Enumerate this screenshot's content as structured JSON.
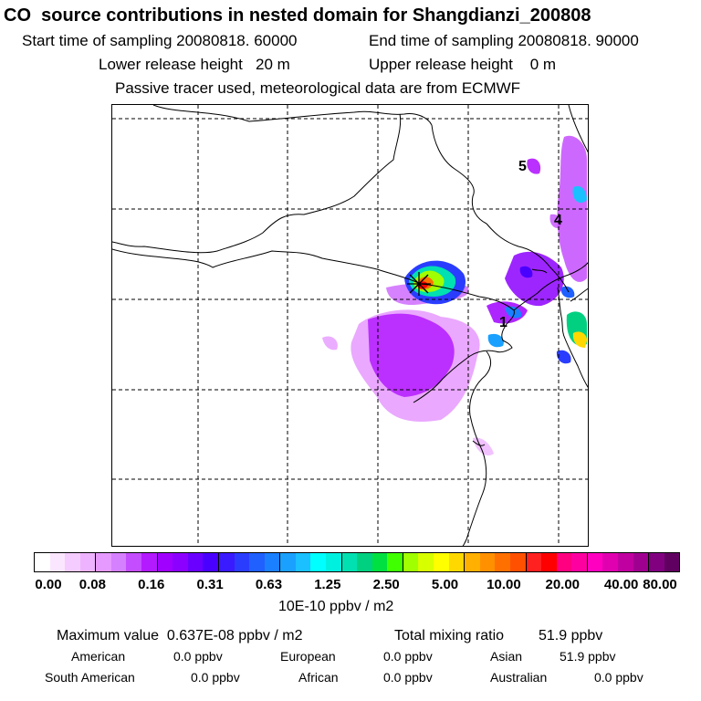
{
  "header": {
    "title": "CO  source contributions in nested domain for Shangdianzi_200808",
    "start_time": "Start time of sampling 20080818. 60000",
    "end_time": "End time of sampling 20080818. 90000",
    "lower_release": "Lower release height   20 m",
    "upper_release": "Upper release height    0 m",
    "note": "Passive tracer used, meteorological data are from ECMWF"
  },
  "map": {
    "labels": [
      "5",
      "4",
      "1"
    ],
    "receptor_marker": "x-cross"
  },
  "legend": {
    "ticks": [
      "0.00",
      "0.08",
      "0.16",
      "0.31",
      "0.63",
      "1.25",
      "2.50",
      "5.00",
      "10.00",
      "20.00",
      "40.00",
      "80.00"
    ],
    "colors": [
      "#ffffff",
      "#fbe6ff",
      "#f5ccff",
      "#eeb3ff",
      "#e699ff",
      "#d580ff",
      "#c44dff",
      "#b31aff",
      "#a000ff",
      "#8c00ff",
      "#6a00ff",
      "#4a00ff",
      "#3a1aff",
      "#2a3dff",
      "#1f60ff",
      "#1a80ff",
      "#1aa0ff",
      "#1ac0ff",
      "#00ffff",
      "#00f0e0",
      "#00e0b0",
      "#00d080",
      "#00e040",
      "#40ff00",
      "#a0ff00",
      "#d8ff00",
      "#ffff00",
      "#ffd800",
      "#ffb000",
      "#ff9000",
      "#ff7000",
      "#ff5000",
      "#ff2020",
      "#ff0000",
      "#ff0080",
      "#ff00a0",
      "#ff00c0",
      "#e000b0",
      "#c000a0",
      "#a00090",
      "#800080",
      "#600060"
    ],
    "unit": "10E-10 ppbv / m2"
  },
  "summary": {
    "max_value": "Maximum value  0.637E-08 ppbv / m2",
    "total_label": "Total mixing ratio",
    "total_value": "51.9 ppbv"
  },
  "regions": [
    {
      "name": "American",
      "value": "0.0 ppbv"
    },
    {
      "name": "European",
      "value": "0.0 ppbv"
    },
    {
      "name": "Asian",
      "value": "51.9 ppbv"
    },
    {
      "name": "South American",
      "value": "0.0 ppbv"
    },
    {
      "name": "African",
      "value": "0.0 ppbv"
    },
    {
      "name": "Australian",
      "value": "0.0 ppbv"
    }
  ]
}
